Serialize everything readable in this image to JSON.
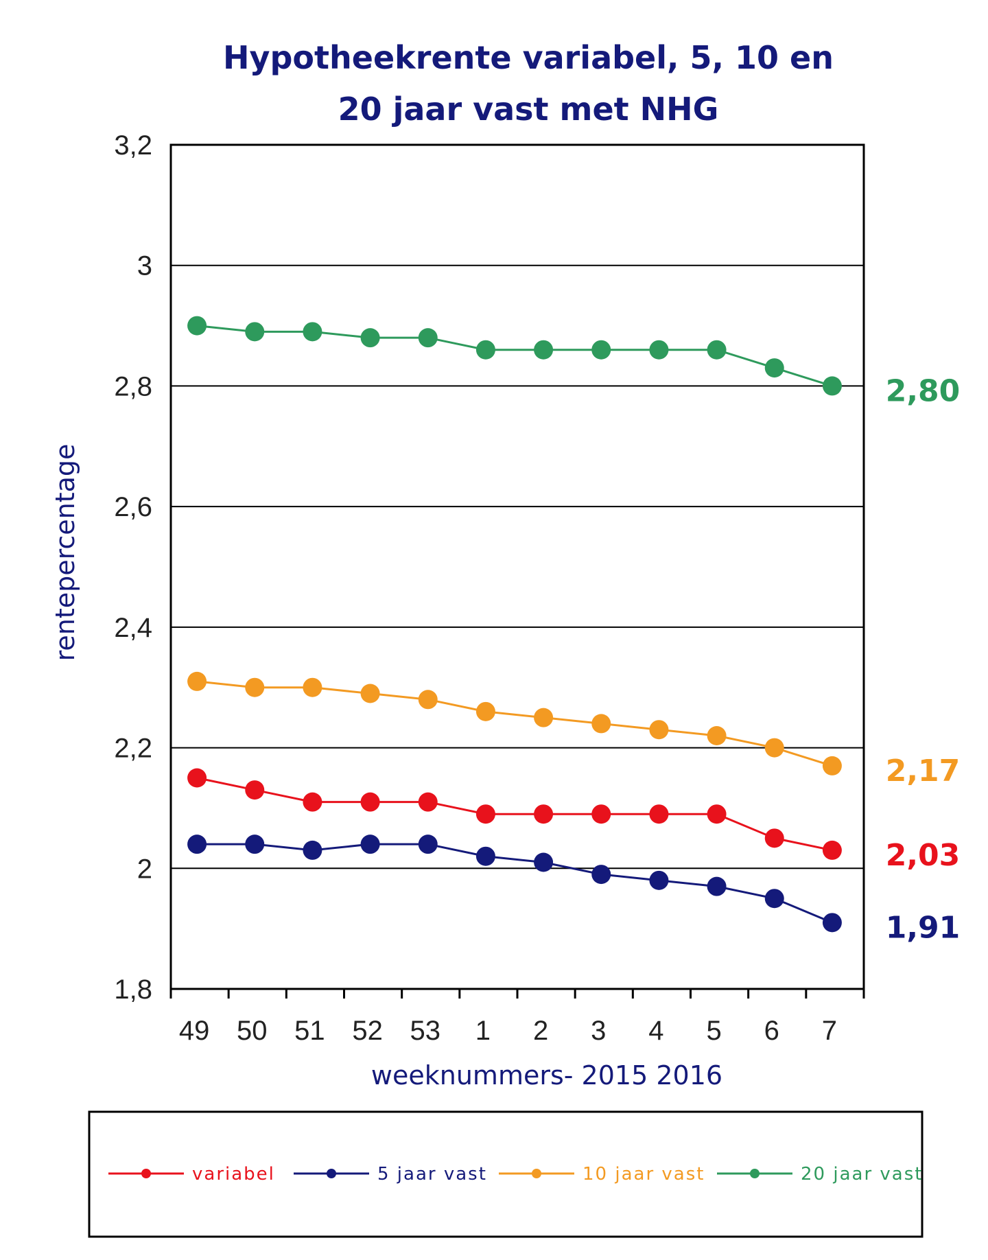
{
  "chart_data": {
    "type": "line",
    "title_lines": [
      "Hypotheekrente variabel, 5, 10 en",
      "20 jaar vast met NHG"
    ],
    "xlabel": "weeknummers- 2015 2016",
    "ylabel": "rentepercentage",
    "categories": [
      "49",
      "50",
      "51",
      "52",
      "53",
      "1",
      "2",
      "3",
      "4",
      "5",
      "6",
      "7"
    ],
    "ylim": [
      1.8,
      3.2
    ],
    "yticks": [
      1.8,
      2.0,
      2.2,
      2.4,
      2.6,
      2.8,
      3.0,
      3.2
    ],
    "ytick_labels": [
      "1,8",
      "2",
      "2,2",
      "2,4",
      "2,6",
      "2,8",
      "3",
      "3,2"
    ],
    "grid": "horizontal",
    "legend_position": "bottom",
    "series": [
      {
        "name": "variabel",
        "color": "#e8121c",
        "values": [
          2.15,
          2.13,
          2.11,
          2.11,
          2.11,
          2.09,
          2.09,
          2.09,
          2.09,
          2.09,
          2.05,
          2.03
        ],
        "end_label": "2,03"
      },
      {
        "name": "5 jaar vast",
        "color": "#141a7a",
        "values": [
          2.04,
          2.04,
          2.03,
          2.04,
          2.04,
          2.02,
          2.01,
          1.99,
          1.98,
          1.97,
          1.95,
          1.91
        ],
        "end_label": "1,91"
      },
      {
        "name": "10 jaar vast",
        "color": "#f39a22",
        "values": [
          2.31,
          2.3,
          2.3,
          2.29,
          2.28,
          2.26,
          2.25,
          2.24,
          2.23,
          2.22,
          2.2,
          2.17
        ],
        "end_label": "2,17"
      },
      {
        "name": "20 jaar vast",
        "color": "#2e9a5c",
        "values": [
          2.9,
          2.89,
          2.89,
          2.88,
          2.88,
          2.86,
          2.86,
          2.86,
          2.86,
          2.86,
          2.83,
          2.8
        ],
        "end_label": "2,80"
      }
    ],
    "title_color": "#141a7a",
    "axis_label_color": "#141a7a"
  }
}
